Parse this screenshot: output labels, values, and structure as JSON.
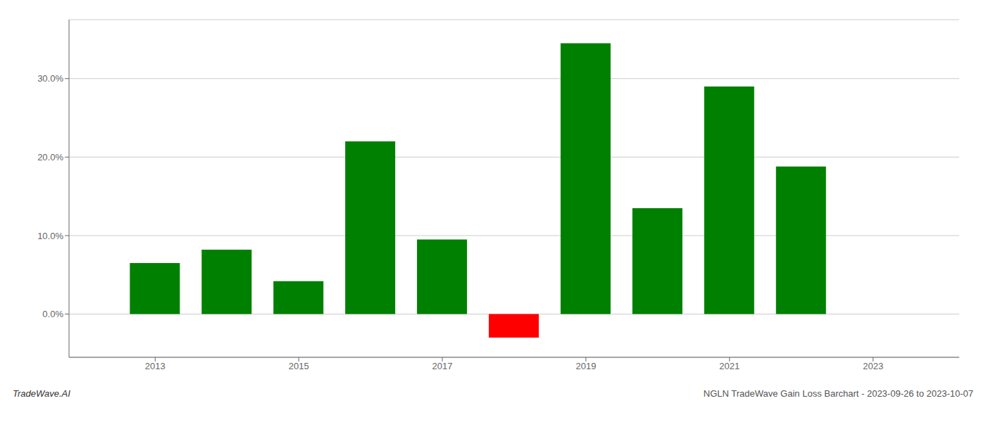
{
  "chart_data": {
    "type": "bar",
    "x": [
      2013,
      2014,
      2015,
      2016,
      2017,
      2018,
      2019,
      2020,
      2021,
      2022
    ],
    "values": [
      0.065,
      0.082,
      0.042,
      0.22,
      0.095,
      -0.03,
      0.345,
      0.135,
      0.29,
      0.188
    ],
    "colors": [
      "#008000",
      "#008000",
      "#008000",
      "#008000",
      "#008000",
      "#ff0000",
      "#008000",
      "#008000",
      "#008000",
      "#008000"
    ],
    "xlim": [
      2011.8,
      2024.2
    ],
    "xticks": [
      2013,
      2015,
      2017,
      2019,
      2021,
      2023
    ],
    "ylim": [
      -0.055,
      0.375
    ],
    "yticks": [
      {
        "value": 0,
        "label": "0.0%"
      },
      {
        "value": 0.1,
        "label": "10.0%"
      },
      {
        "value": 0.2,
        "label": "20.0%"
      },
      {
        "value": 0.3,
        "label": "30.0%"
      }
    ],
    "grid": true,
    "annotations": [
      "TradeWave.AI",
      "NGLN TradeWave Gain Loss Barchart - 2023-09-26 to 2023-10-07"
    ]
  }
}
